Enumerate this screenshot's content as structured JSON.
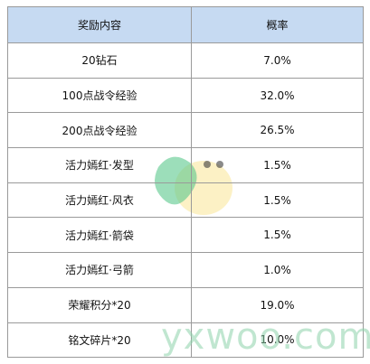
{
  "table": {
    "header": [
      "奖励内容",
      "概率"
    ],
    "rows": [
      [
        "20钻石",
        "7.0%"
      ],
      [
        "100点战令经验",
        "32.0%"
      ],
      [
        "200点战令经验",
        "26.5%"
      ],
      [
        "活力嫣红·发型",
        "1.5%"
      ],
      [
        "活力嫣红·风衣",
        "1.5%"
      ],
      [
        "活力嫣红·箭袋",
        "1.5%"
      ],
      [
        "活力嫣红·弓箭",
        "1.0%"
      ],
      [
        "荣耀积分*20",
        "19.0%"
      ],
      [
        "铭文碎片*20",
        "10.0%"
      ]
    ]
  },
  "watermark": "yxwoo.com"
}
